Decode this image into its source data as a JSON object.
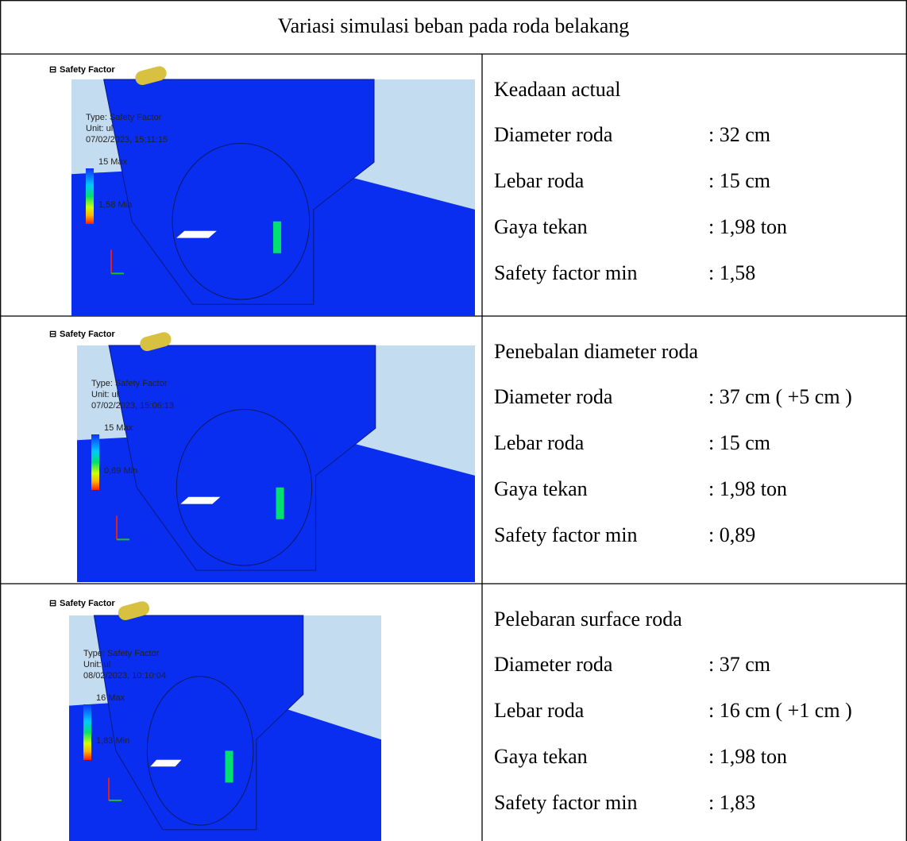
{
  "header": {
    "title": "Variasi simulasi beban pada roda belakang"
  },
  "rows": [
    {
      "image": {
        "caption": "Safety Factor",
        "legend": [
          "Type: Safety Factor",
          "Unit: ul",
          "07/02/2023, 15:11:15",
          "15 Max",
          "1,58 Min"
        ]
      },
      "title": "Keadaan actual",
      "items": [
        {
          "label": "Diameter roda",
          "value": ": 32 cm"
        },
        {
          "label": "Lebar roda",
          "value": ": 15 cm"
        },
        {
          "label": "Gaya tekan",
          "value": ": 1,98 ton"
        },
        {
          "label": "Safety factor min",
          "value": ": 1,58"
        }
      ]
    },
    {
      "image": {
        "caption": "Safety Factor",
        "legend": [
          "Type: Safety Factor",
          "Unit: ul",
          "07/02/2023, 15:06:13",
          "15 Max",
          "0,89 Min"
        ]
      },
      "title": "Penebalan diameter roda",
      "items": [
        {
          "label": "Diameter roda",
          "value": ": 37 cm ( +5 cm )"
        },
        {
          "label": "Lebar roda",
          "value": ": 15 cm"
        },
        {
          "label": "Gaya tekan",
          "value": ": 1,98 ton"
        },
        {
          "label": "Safety factor min",
          "value": ": 0,89"
        }
      ]
    },
    {
      "image": {
        "caption": "Safety Factor",
        "legend": [
          "Type: Safety Factor",
          "Unit: ul",
          "08/02/2023, 10:10:04",
          "16 Max",
          "1,83 Min"
        ]
      },
      "title": "Pelebaran surface roda",
      "items": [
        {
          "label": "Diameter roda",
          "value": ": 37 cm"
        },
        {
          "label": "Lebar roda",
          "value": ": 16 cm ( +1 cm )"
        },
        {
          "label": "Gaya tekan",
          "value": ": 1,98 ton"
        },
        {
          "label": "Safety factor min",
          "value": ": 1,83"
        }
      ]
    }
  ]
}
